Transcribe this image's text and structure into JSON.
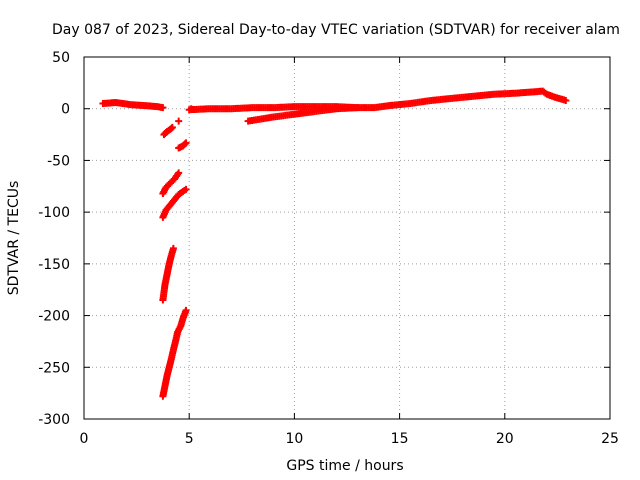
{
  "chart_data": {
    "type": "scatter",
    "title": "Day 087 of 2023, Sidereal Day-to-day VTEC variation (SDTVAR) for receiver alam",
    "xlabel": "GPS time / hours",
    "ylabel": "SDTVAR / TECUs",
    "xlim": [
      0,
      25
    ],
    "ylim": [
      -300,
      50
    ],
    "xticks": [
      0,
      5,
      10,
      15,
      20,
      25
    ],
    "yticks": [
      -300,
      -250,
      -200,
      -150,
      -100,
      -50,
      0,
      50
    ],
    "grid": true,
    "marker": "plus",
    "series": [
      {
        "name": "SDTVAR",
        "color": "#ff0000",
        "segments": [
          {
            "x": [
              0.9,
              1.5,
              2.2,
              2.9,
              3.5,
              3.75
            ],
            "y": [
              5,
              6,
              4,
              3,
              2,
              1
            ]
          },
          {
            "x": [
              5.0,
              6.0,
              7.0,
              8.0,
              9.0,
              10.0,
              11.0,
              12.0,
              13.0,
              13.8,
              14.5,
              15.5,
              16.5,
              17.5,
              18.5,
              19.5,
              20.5,
              21.2,
              21.8,
              22.0,
              22.4,
              22.9
            ],
            "y": [
              -1,
              0,
              0,
              1,
              1,
              2,
              2,
              2,
              1,
              1,
              3,
              5,
              8,
              10,
              12,
              14,
              15,
              16,
              17,
              14,
              11,
              8
            ]
          },
          {
            "x": [
              7.8,
              9.0,
              10.5,
              12.0,
              13.0
            ],
            "y": [
              -12,
              -8,
              -4,
              0,
              1
            ]
          },
          {
            "x": [
              3.8,
              3.95,
              4.1,
              4.2
            ],
            "y": [
              -25,
              -22,
              -20,
              -18
            ]
          },
          {
            "x": [
              4.5
            ],
            "y": [
              -12
            ]
          },
          {
            "x": [
              4.5,
              4.7,
              4.85
            ],
            "y": [
              -38,
              -36,
              -33
            ]
          },
          {
            "x": [
              3.75,
              3.9,
              4.1,
              4.3,
              4.5
            ],
            "y": [
              -82,
              -76,
              -72,
              -68,
              -62
            ]
          },
          {
            "x": [
              3.75,
              3.9,
              4.1,
              4.3,
              4.5,
              4.7,
              4.85
            ],
            "y": [
              -105,
              -98,
              -93,
              -88,
              -83,
              -80,
              -78
            ]
          },
          {
            "x": [
              3.75,
              3.85,
              3.95,
              4.05,
              4.15,
              4.25
            ],
            "y": [
              -185,
              -170,
              -160,
              -150,
              -142,
              -135
            ]
          },
          {
            "x": [
              3.75,
              3.85,
              3.95,
              4.05,
              4.15,
              4.25,
              4.35,
              4.45,
              4.6,
              4.7,
              4.85
            ],
            "y": [
              -278,
              -268,
              -258,
              -250,
              -242,
              -233,
              -225,
              -216,
              -210,
              -203,
              -195
            ]
          },
          {
            "x": [
              5.1
            ],
            "y": [
              0
            ]
          }
        ]
      }
    ]
  }
}
